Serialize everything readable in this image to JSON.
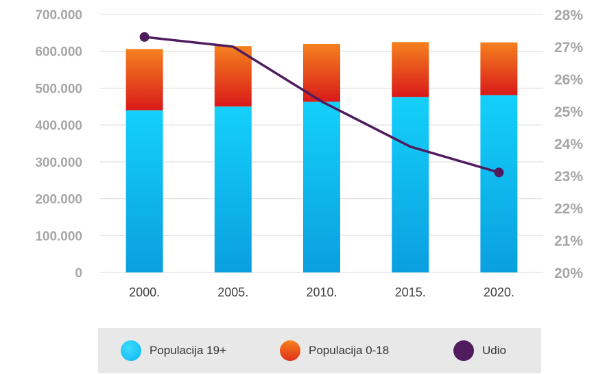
{
  "chart_data": {
    "type": "bar",
    "stacked": true,
    "categories": [
      "2000.",
      "2005.",
      "2010.",
      "2015.",
      "2020."
    ],
    "series": [
      {
        "name": "Populacija 19+",
        "kind": "bar",
        "axis": "left",
        "values": [
          440000,
          450000,
          463000,
          476000,
          481000
        ],
        "color_top": "#14d0fa",
        "color_bottom": "#0a9fe0"
      },
      {
        "name": "Populacija 0-18",
        "kind": "bar",
        "axis": "left",
        "values": [
          166000,
          164000,
          157000,
          149000,
          143000
        ],
        "color_top": "#f5811e",
        "color_bottom": "#d91a1a"
      },
      {
        "name": "Udio",
        "kind": "line",
        "axis": "right",
        "values": [
          27.3,
          27.0,
          25.3,
          23.9,
          23.1
        ],
        "color": "#4f1c5e"
      }
    ],
    "y_left": {
      "ylim": [
        0,
        700000
      ],
      "ticks": [
        0,
        100000,
        200000,
        300000,
        400000,
        500000,
        600000,
        700000
      ],
      "tick_labels": [
        "0",
        "100.000",
        "200.000",
        "300.000",
        "400.000",
        "500.000",
        "600.000",
        "700.000"
      ]
    },
    "y_right": {
      "ylim": [
        20,
        28
      ],
      "ticks": [
        20,
        21,
        22,
        23,
        24,
        25,
        26,
        27,
        28
      ],
      "tick_labels": [
        "20%",
        "21%",
        "22%",
        "23%",
        "24%",
        "25%",
        "26%",
        "27%",
        "28%"
      ]
    },
    "grid": true,
    "legend_position": "bottom",
    "title": "",
    "xlabel": "",
    "ylabel": ""
  },
  "legend": {
    "items": [
      {
        "label": "Populacija 19+"
      },
      {
        "label": "Populacija 0-18"
      },
      {
        "label": "Udio"
      }
    ]
  }
}
